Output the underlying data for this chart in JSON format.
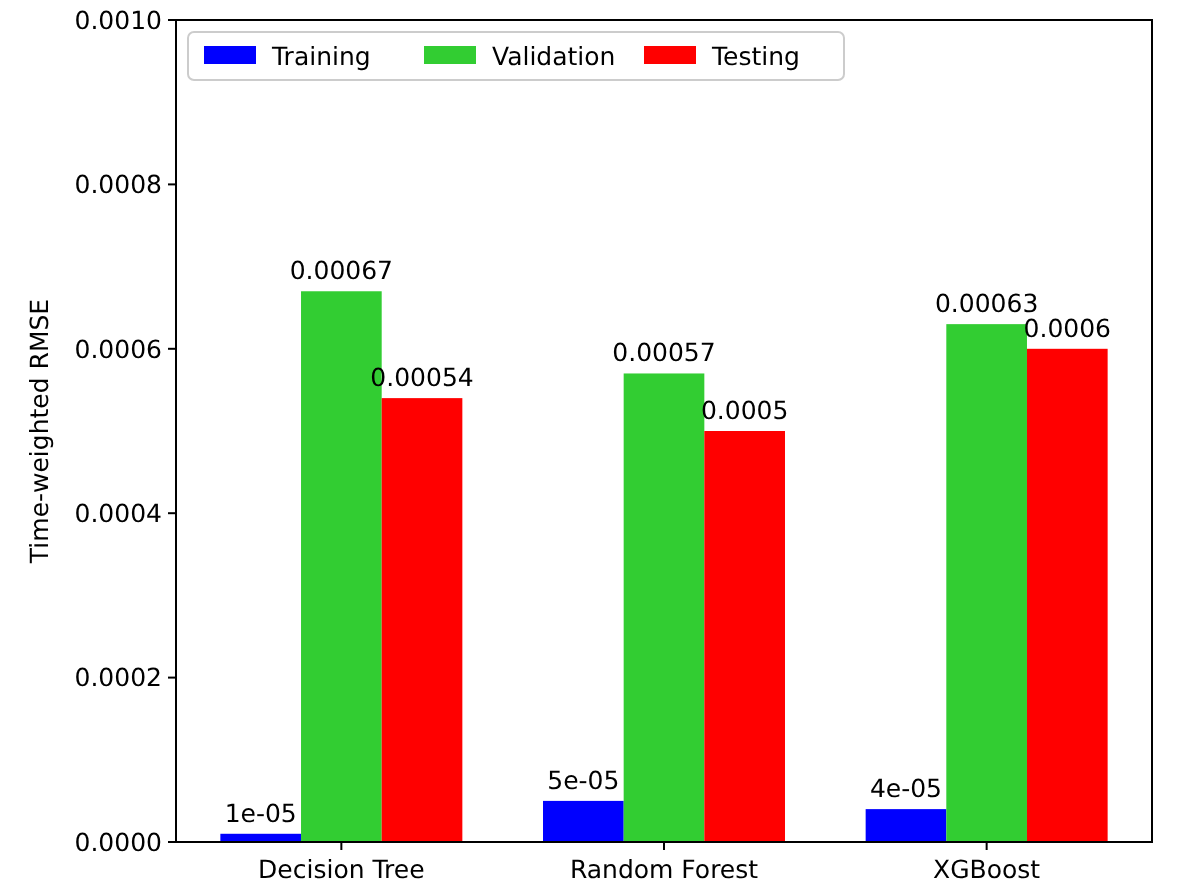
{
  "chart_data": {
    "type": "bar",
    "ylabel": "Time-weighted RMSE",
    "categories": [
      "Decision Tree",
      "Random Forest",
      "XGBoost"
    ],
    "series": [
      {
        "name": "Training",
        "color": "#0000ff",
        "values": [
          1e-05,
          5e-05,
          4e-05
        ],
        "value_labels": [
          "1e-05",
          "5e-05",
          "4e-05"
        ]
      },
      {
        "name": "Validation",
        "color": "#32cd32",
        "values": [
          0.00067,
          0.00057,
          0.00063
        ],
        "value_labels": [
          "0.00067",
          "0.00057",
          "0.00063"
        ]
      },
      {
        "name": "Testing",
        "color": "#ff0000",
        "values": [
          0.00054,
          0.0005,
          0.0006
        ],
        "value_labels": [
          "0.00054",
          "0.0005",
          "0.0006"
        ]
      }
    ],
    "ylim": [
      0,
      0.001
    ],
    "yticks": [
      {
        "value": 0,
        "label": "0.0000"
      },
      {
        "value": 0.0002,
        "label": "0.0002"
      },
      {
        "value": 0.0004,
        "label": "0.0004"
      },
      {
        "value": 0.0006,
        "label": "0.0006"
      },
      {
        "value": 0.0008,
        "label": "0.0008"
      },
      {
        "value": 0.001,
        "label": "0.0010"
      }
    ],
    "legend": "top left",
    "grid": false
  }
}
